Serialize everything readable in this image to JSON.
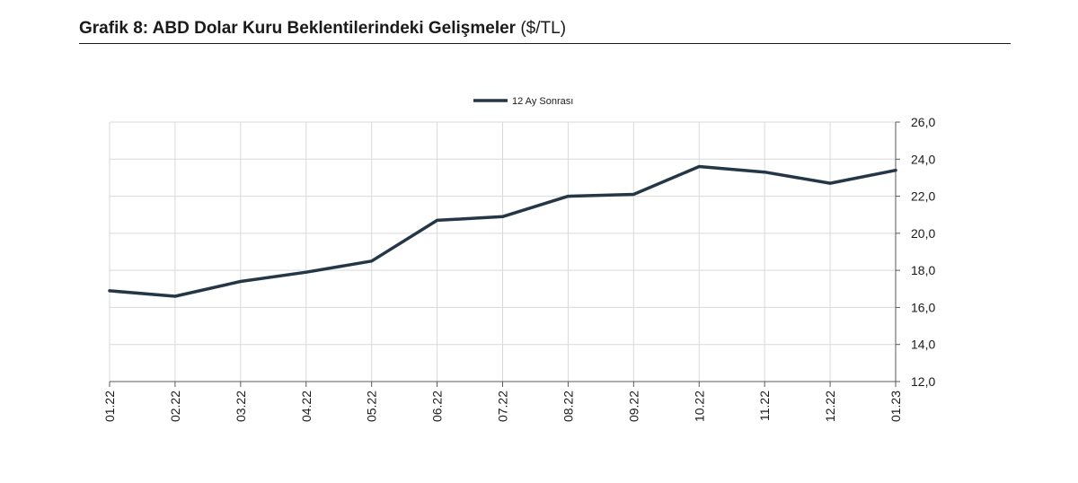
{
  "header": {
    "title": "Grafik 8: ABD Dolar Kuru Beklentilerindeki Gelişmeler",
    "unit": "($/TL)"
  },
  "chart_data": {
    "type": "line",
    "title": "Grafik 8: ABD Dolar Kuru Beklentilerindeki Gelişmeler ($/TL)",
    "xlabel": "",
    "ylabel": "",
    "categories": [
      "01.22",
      "02.22",
      "03.22",
      "04.22",
      "05.22",
      "06.22",
      "07.22",
      "08.22",
      "09.22",
      "10.22",
      "11.22",
      "12.22",
      "01.23"
    ],
    "series": [
      {
        "name": "12 Ay Sonrası",
        "color": "#253746",
        "values": [
          16.9,
          16.6,
          17.4,
          17.9,
          18.5,
          20.7,
          20.9,
          22.0,
          22.1,
          23.6,
          23.3,
          22.7,
          23.4
        ]
      }
    ],
    "ylim": [
      12.0,
      26.0
    ],
    "yticks": [
      "12,0",
      "14,0",
      "16,0",
      "18,0",
      "20,0",
      "22,0",
      "24,0",
      "26,0"
    ],
    "y_axis_side": "right",
    "x_label_rotation": "vertical",
    "grid": true,
    "legend_position": "top-center"
  }
}
